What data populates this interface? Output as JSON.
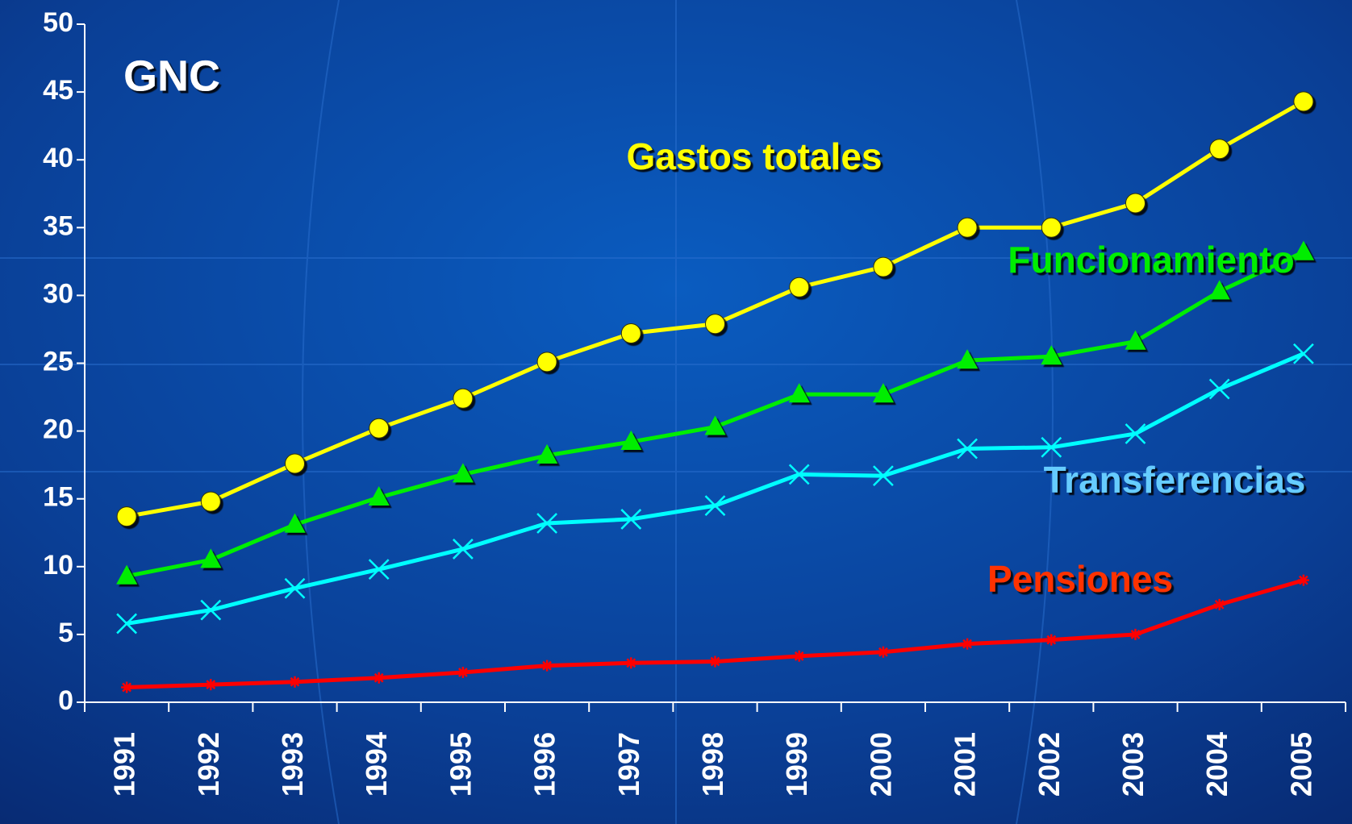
{
  "chart_data": {
    "type": "line",
    "annotations": [
      "GNC"
    ],
    "categories": [
      "1991",
      "1992",
      "1993",
      "1994",
      "1995",
      "1996",
      "1997",
      "1998",
      "1999",
      "2000",
      "2001",
      "2002",
      "2003",
      "2004",
      "2005"
    ],
    "series": [
      {
        "name": "Gastos totales",
        "color": "#ffff00",
        "marker": "circle",
        "values": [
          13.7,
          14.8,
          17.6,
          20.2,
          22.4,
          25.1,
          27.2,
          27.9,
          30.6,
          32.1,
          35.0,
          35.0,
          36.8,
          40.8,
          44.3
        ]
      },
      {
        "name": "Funcionamiento",
        "color": "#00ee00",
        "marker": "triangle",
        "values": [
          9.3,
          10.5,
          13.1,
          15.1,
          16.8,
          18.2,
          19.2,
          20.3,
          22.7,
          22.7,
          25.2,
          25.5,
          26.6,
          30.3,
          33.2
        ]
      },
      {
        "name": "Transferencias",
        "color": "#00ffff",
        "label_color": "#66ccff",
        "marker": "x",
        "values": [
          5.8,
          6.8,
          8.4,
          9.8,
          11.3,
          13.2,
          13.5,
          14.5,
          16.8,
          16.7,
          18.7,
          18.8,
          19.8,
          23.1,
          25.7
        ]
      },
      {
        "name": "Pensiones",
        "color": "#ff0000",
        "label_color": "#ff3300",
        "marker": "star",
        "values": [
          1.1,
          1.3,
          1.5,
          1.8,
          2.2,
          2.7,
          2.9,
          3.0,
          3.4,
          3.7,
          4.3,
          4.6,
          5.0,
          7.2,
          9.0
        ]
      }
    ],
    "ylim": [
      0,
      50
    ],
    "yticks": [
      0,
      5,
      10,
      15,
      20,
      25,
      30,
      35,
      40,
      45,
      50
    ],
    "grid": false
  }
}
